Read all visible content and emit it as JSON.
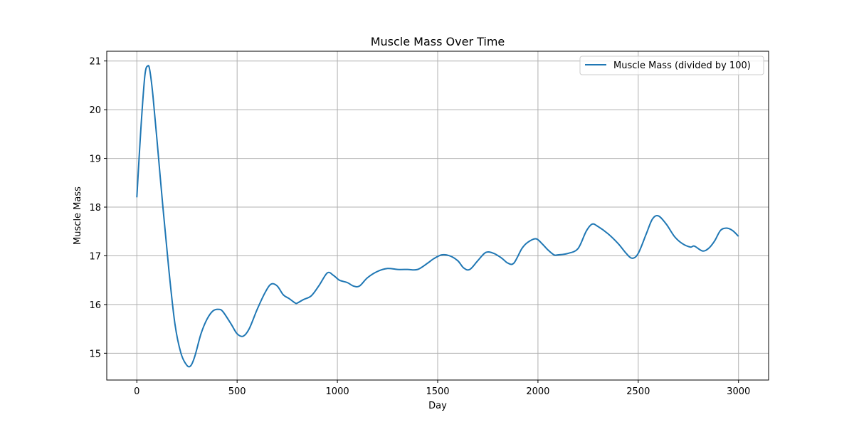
{
  "chart_data": {
    "type": "line",
    "title": "Muscle Mass Over Time",
    "xlabel": "Day",
    "ylabel": "Muscle Mass",
    "xlim": [
      -150,
      3150
    ],
    "ylim": [
      14.45,
      21.2
    ],
    "xticks": [
      0,
      500,
      1000,
      1500,
      2000,
      2500,
      3000
    ],
    "yticks": [
      15,
      16,
      17,
      18,
      19,
      20,
      21
    ],
    "grid": true,
    "legend_position": "top-right",
    "colors": {
      "series": "#1f77b4",
      "grid": "#b0b0b0"
    },
    "series": [
      {
        "name": "Muscle Mass (divided by 100)",
        "x": [
          0,
          20,
          40,
          55,
          65,
          80,
          100,
          130,
          160,
          190,
          220,
          250,
          270,
          290,
          320,
          350,
          380,
          410,
          430,
          470,
          500,
          530,
          560,
          600,
          640,
          670,
          700,
          730,
          760,
          790,
          800,
          830,
          870,
          910,
          950,
          980,
          1010,
          1050,
          1080,
          1110,
          1150,
          1200,
          1250,
          1300,
          1350,
          1400,
          1450,
          1480,
          1520,
          1560,
          1600,
          1630,
          1660,
          1700,
          1740,
          1780,
          1820,
          1850,
          1880,
          1920,
          1950,
          1990,
          2020,
          2050,
          2080,
          2100,
          2150,
          2200,
          2240,
          2270,
          2300,
          2350,
          2400,
          2440,
          2470,
          2500,
          2540,
          2570,
          2600,
          2640,
          2680,
          2720,
          2760,
          2780,
          2820,
          2850,
          2880,
          2910,
          2940,
          2970,
          3000
        ],
        "y": [
          18.2,
          19.6,
          20.7,
          20.9,
          20.8,
          20.3,
          19.4,
          18.0,
          16.7,
          15.6,
          15.0,
          14.75,
          14.75,
          14.95,
          15.4,
          15.7,
          15.87,
          15.9,
          15.85,
          15.6,
          15.4,
          15.35,
          15.5,
          15.9,
          16.25,
          16.42,
          16.38,
          16.2,
          16.12,
          16.03,
          16.03,
          16.1,
          16.18,
          16.4,
          16.65,
          16.6,
          16.5,
          16.45,
          16.38,
          16.38,
          16.55,
          16.68,
          16.74,
          16.72,
          16.72,
          16.72,
          16.85,
          16.94,
          17.02,
          17.0,
          16.9,
          16.75,
          16.72,
          16.9,
          17.07,
          17.05,
          16.95,
          16.85,
          16.85,
          17.15,
          17.28,
          17.35,
          17.25,
          17.12,
          17.02,
          17.02,
          17.05,
          17.15,
          17.5,
          17.65,
          17.6,
          17.45,
          17.25,
          17.05,
          16.95,
          17.05,
          17.45,
          17.75,
          17.82,
          17.65,
          17.4,
          17.25,
          17.18,
          17.2,
          17.1,
          17.15,
          17.3,
          17.52,
          17.57,
          17.52,
          17.4
        ]
      }
    ]
  }
}
